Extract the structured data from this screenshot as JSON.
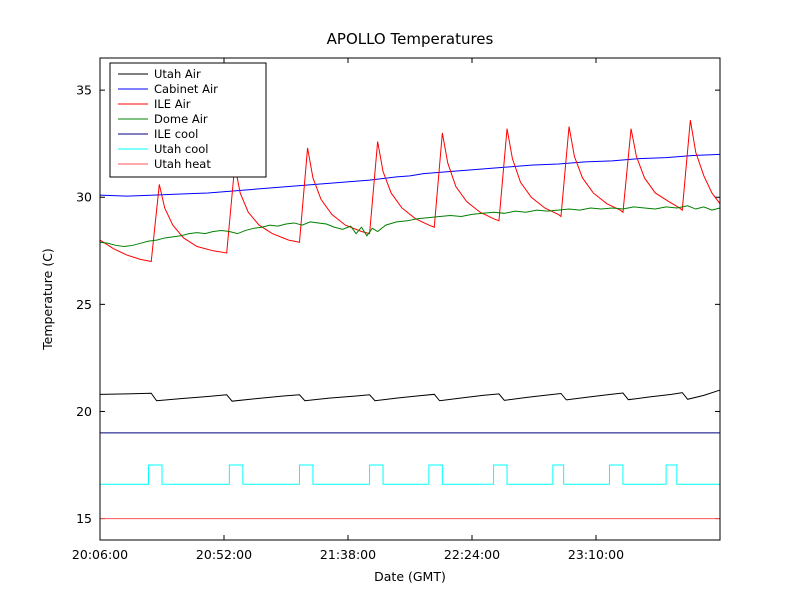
{
  "chart_data": {
    "type": "line",
    "title": "APOLLO Temperatures",
    "xlabel": "Date (GMT)",
    "ylabel": "Temperature (C)",
    "x_unit": "minutes_since_20:06:00_GMT",
    "xlim": [
      0,
      230
    ],
    "ylim": [
      14,
      36.5
    ],
    "grid": false,
    "legend_position": "upper left",
    "xticks": [
      {
        "t": 0,
        "label": "20:06:00"
      },
      {
        "t": 46,
        "label": "20:52:00"
      },
      {
        "t": 92,
        "label": "21:38:00"
      },
      {
        "t": 138,
        "label": "22:24:00"
      },
      {
        "t": 184,
        "label": "23:10:00"
      }
    ],
    "yticks": [
      {
        "v": 15,
        "label": "15"
      },
      {
        "v": 20,
        "label": "20"
      },
      {
        "v": 25,
        "label": "25"
      },
      {
        "v": 30,
        "label": "30"
      },
      {
        "v": 35,
        "label": "35"
      }
    ],
    "series": [
      {
        "name": "Utah Air",
        "color": "#000000",
        "points": [
          [
            0,
            20.8
          ],
          [
            10,
            20.82
          ],
          [
            19,
            20.85
          ],
          [
            21,
            20.5
          ],
          [
            30,
            20.6
          ],
          [
            40,
            20.7
          ],
          [
            47,
            20.78
          ],
          [
            49,
            20.48
          ],
          [
            58,
            20.6
          ],
          [
            68,
            20.72
          ],
          [
            74,
            20.78
          ],
          [
            76,
            20.5
          ],
          [
            85,
            20.62
          ],
          [
            95,
            20.72
          ],
          [
            100,
            20.78
          ],
          [
            102,
            20.5
          ],
          [
            110,
            20.62
          ],
          [
            118,
            20.73
          ],
          [
            124,
            20.8
          ],
          [
            126,
            20.5
          ],
          [
            134,
            20.63
          ],
          [
            142,
            20.75
          ],
          [
            148,
            20.82
          ],
          [
            150,
            20.52
          ],
          [
            158,
            20.65
          ],
          [
            166,
            20.77
          ],
          [
            171,
            20.84
          ],
          [
            173,
            20.54
          ],
          [
            181,
            20.67
          ],
          [
            189,
            20.79
          ],
          [
            194,
            20.86
          ],
          [
            196,
            20.55
          ],
          [
            204,
            20.68
          ],
          [
            212,
            20.8
          ],
          [
            216,
            20.88
          ],
          [
            218,
            20.57
          ],
          [
            224,
            20.75
          ],
          [
            230,
            21.0
          ]
        ]
      },
      {
        "name": "Cabinet Air",
        "color": "#0000ff",
        "points": [
          [
            0,
            30.1
          ],
          [
            10,
            30.05
          ],
          [
            20,
            30.1
          ],
          [
            30,
            30.15
          ],
          [
            40,
            30.2
          ],
          [
            50,
            30.3
          ],
          [
            60,
            30.4
          ],
          [
            70,
            30.5
          ],
          [
            80,
            30.6
          ],
          [
            90,
            30.7
          ],
          [
            100,
            30.8
          ],
          [
            110,
            30.95
          ],
          [
            115,
            31.0
          ],
          [
            120,
            31.1
          ],
          [
            130,
            31.2
          ],
          [
            140,
            31.3
          ],
          [
            150,
            31.4
          ],
          [
            160,
            31.5
          ],
          [
            170,
            31.55
          ],
          [
            180,
            31.65
          ],
          [
            190,
            31.7
          ],
          [
            200,
            31.8
          ],
          [
            210,
            31.85
          ],
          [
            220,
            31.95
          ],
          [
            230,
            32.0
          ]
        ]
      },
      {
        "name": "ILE Air",
        "color": "#ff0000",
        "points": [
          [
            0,
            28.0
          ],
          [
            5,
            27.6
          ],
          [
            10,
            27.3
          ],
          [
            15,
            27.1
          ],
          [
            19,
            27.0
          ],
          [
            22,
            30.6
          ],
          [
            24,
            29.5
          ],
          [
            27,
            28.7
          ],
          [
            31,
            28.1
          ],
          [
            36,
            27.7
          ],
          [
            42,
            27.5
          ],
          [
            47,
            27.4
          ],
          [
            50,
            31.5
          ],
          [
            52,
            30.2
          ],
          [
            55,
            29.3
          ],
          [
            59,
            28.7
          ],
          [
            64,
            28.3
          ],
          [
            70,
            28.0
          ],
          [
            74,
            27.9
          ],
          [
            77,
            32.3
          ],
          [
            79,
            30.9
          ],
          [
            82,
            29.9
          ],
          [
            86,
            29.2
          ],
          [
            91,
            28.7
          ],
          [
            97,
            28.4
          ],
          [
            100,
            28.3
          ],
          [
            103,
            32.6
          ],
          [
            105,
            31.2
          ],
          [
            108,
            30.2
          ],
          [
            112,
            29.5
          ],
          [
            117,
            29.0
          ],
          [
            122,
            28.7
          ],
          [
            124,
            28.6
          ],
          [
            127,
            33.0
          ],
          [
            129,
            31.6
          ],
          [
            132,
            30.5
          ],
          [
            136,
            29.8
          ],
          [
            141,
            29.3
          ],
          [
            146,
            29.0
          ],
          [
            148,
            28.9
          ],
          [
            151,
            33.2
          ],
          [
            153,
            31.8
          ],
          [
            156,
            30.7
          ],
          [
            160,
            30.0
          ],
          [
            165,
            29.5
          ],
          [
            170,
            29.2
          ],
          [
            171,
            29.1
          ],
          [
            174,
            33.3
          ],
          [
            176,
            31.9
          ],
          [
            179,
            30.9
          ],
          [
            183,
            30.2
          ],
          [
            188,
            29.7
          ],
          [
            193,
            29.4
          ],
          [
            194,
            29.3
          ],
          [
            197,
            33.2
          ],
          [
            199,
            31.9
          ],
          [
            202,
            30.9
          ],
          [
            206,
            30.2
          ],
          [
            211,
            29.8
          ],
          [
            215,
            29.5
          ],
          [
            216,
            29.4
          ],
          [
            219,
            33.6
          ],
          [
            221,
            32.1
          ],
          [
            224,
            31.0
          ],
          [
            227,
            30.2
          ],
          [
            230,
            29.7
          ]
        ]
      },
      {
        "name": "Dome Air",
        "color": "#008000",
        "points": [
          [
            0,
            27.9
          ],
          [
            3,
            27.85
          ],
          [
            6,
            27.75
          ],
          [
            9,
            27.7
          ],
          [
            12,
            27.75
          ],
          [
            15,
            27.85
          ],
          [
            18,
            27.95
          ],
          [
            21,
            28.0
          ],
          [
            24,
            28.1
          ],
          [
            27,
            28.15
          ],
          [
            30,
            28.2
          ],
          [
            33,
            28.3
          ],
          [
            36,
            28.35
          ],
          [
            39,
            28.3
          ],
          [
            42,
            28.4
          ],
          [
            45,
            28.45
          ],
          [
            48,
            28.4
          ],
          [
            51,
            28.3
          ],
          [
            54,
            28.45
          ],
          [
            57,
            28.55
          ],
          [
            60,
            28.6
          ],
          [
            63,
            28.7
          ],
          [
            66,
            28.65
          ],
          [
            69,
            28.75
          ],
          [
            72,
            28.8
          ],
          [
            75,
            28.7
          ],
          [
            78,
            28.85
          ],
          [
            81,
            28.8
          ],
          [
            84,
            28.75
          ],
          [
            87,
            28.6
          ],
          [
            90,
            28.5
          ],
          [
            93,
            28.65
          ],
          [
            95,
            28.3
          ],
          [
            97,
            28.6
          ],
          [
            99,
            28.2
          ],
          [
            101,
            28.55
          ],
          [
            103,
            28.4
          ],
          [
            106,
            28.7
          ],
          [
            110,
            28.85
          ],
          [
            114,
            28.9
          ],
          [
            118,
            29.0
          ],
          [
            122,
            29.05
          ],
          [
            126,
            29.1
          ],
          [
            130,
            29.15
          ],
          [
            134,
            29.1
          ],
          [
            138,
            29.2
          ],
          [
            142,
            29.25
          ],
          [
            146,
            29.3
          ],
          [
            150,
            29.25
          ],
          [
            154,
            29.35
          ],
          [
            158,
            29.3
          ],
          [
            162,
            29.4
          ],
          [
            166,
            29.35
          ],
          [
            170,
            29.4
          ],
          [
            174,
            29.45
          ],
          [
            178,
            29.4
          ],
          [
            182,
            29.5
          ],
          [
            186,
            29.45
          ],
          [
            190,
            29.5
          ],
          [
            194,
            29.45
          ],
          [
            198,
            29.55
          ],
          [
            202,
            29.5
          ],
          [
            206,
            29.45
          ],
          [
            210,
            29.55
          ],
          [
            214,
            29.5
          ],
          [
            218,
            29.6
          ],
          [
            221,
            29.45
          ],
          [
            224,
            29.55
          ],
          [
            227,
            29.4
          ],
          [
            230,
            29.5
          ]
        ]
      },
      {
        "name": "ILE cool",
        "color": "#000080",
        "points": [
          [
            0,
            19.0
          ],
          [
            230,
            19.0
          ]
        ]
      },
      {
        "name": "Utah cool",
        "color": "#00ffff",
        "points": [
          [
            0,
            16.6
          ],
          [
            18,
            16.6
          ],
          [
            18,
            17.5
          ],
          [
            23,
            17.5
          ],
          [
            23,
            16.6
          ],
          [
            48,
            16.6
          ],
          [
            48,
            17.5
          ],
          [
            53,
            17.5
          ],
          [
            53,
            16.6
          ],
          [
            74,
            16.6
          ],
          [
            74,
            17.5
          ],
          [
            79,
            17.5
          ],
          [
            79,
            16.6
          ],
          [
            100,
            16.6
          ],
          [
            100,
            17.5
          ],
          [
            105,
            17.5
          ],
          [
            105,
            16.6
          ],
          [
            122,
            16.6
          ],
          [
            122,
            17.5
          ],
          [
            127,
            17.5
          ],
          [
            127,
            16.6
          ],
          [
            146,
            16.6
          ],
          [
            146,
            17.5
          ],
          [
            151,
            17.5
          ],
          [
            151,
            16.6
          ],
          [
            168,
            16.6
          ],
          [
            168,
            17.5
          ],
          [
            172,
            17.5
          ],
          [
            172,
            16.6
          ],
          [
            189,
            16.6
          ],
          [
            189,
            17.5
          ],
          [
            194,
            17.5
          ],
          [
            194,
            16.6
          ],
          [
            210,
            16.6
          ],
          [
            210,
            17.5
          ],
          [
            214,
            17.5
          ],
          [
            214,
            16.6
          ],
          [
            230,
            16.6
          ]
        ]
      },
      {
        "name": "Utah heat",
        "color": "#ff5555",
        "points": [
          [
            0,
            15.0
          ],
          [
            230,
            15.0
          ]
        ]
      }
    ]
  }
}
